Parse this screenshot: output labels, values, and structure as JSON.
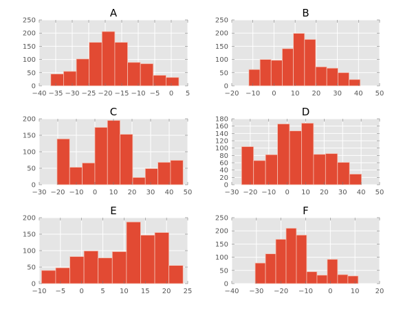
{
  "chart_data": [
    {
      "type": "bar",
      "subtype": "histogram",
      "title": "A",
      "xlim": [
        -40,
        5
      ],
      "ylim": [
        0,
        250
      ],
      "xticks": [
        -40,
        -35,
        -30,
        -25,
        -20,
        -15,
        -10,
        -5,
        0,
        5
      ],
      "yticks": [
        0,
        50,
        100,
        150,
        200,
        250
      ],
      "bin_start": -36.5,
      "bin_end": 2.3,
      "values": [
        45,
        55,
        102,
        165,
        206,
        165,
        89,
        84,
        40,
        32
      ],
      "grid": true,
      "xlabel": "",
      "ylabel": ""
    },
    {
      "type": "bar",
      "subtype": "histogram",
      "title": "B",
      "xlim": [
        -20,
        50
      ],
      "ylim": [
        0,
        250
      ],
      "xticks": [
        -20,
        -10,
        0,
        10,
        20,
        30,
        40,
        50
      ],
      "yticks": [
        0,
        50,
        100,
        150,
        200,
        250
      ],
      "bin_start": -11.9,
      "bin_end": 40.8,
      "values": [
        62,
        100,
        97,
        141,
        199,
        176,
        72,
        67,
        50,
        24
      ],
      "grid": true,
      "xlabel": "",
      "ylabel": ""
    },
    {
      "type": "bar",
      "subtype": "histogram",
      "title": "C",
      "xlim": [
        -30,
        50
      ],
      "ylim": [
        0,
        200
      ],
      "xticks": [
        -30,
        -20,
        -10,
        0,
        10,
        20,
        30,
        40,
        50
      ],
      "yticks": [
        0,
        50,
        100,
        150,
        200
      ],
      "bin_start": -20.4,
      "bin_end": 47.5,
      "values": [
        139,
        53,
        66,
        174,
        195,
        153,
        22,
        49,
        68,
        74
      ],
      "grid": true,
      "xlabel": "",
      "ylabel": ""
    },
    {
      "type": "bar",
      "subtype": "histogram",
      "title": "D",
      "xlim": [
        -30,
        50
      ],
      "ylim": [
        0,
        180
      ],
      "xticks": [
        -30,
        -20,
        -10,
        0,
        10,
        20,
        30,
        40,
        50
      ],
      "yticks": [
        0,
        20,
        40,
        60,
        80,
        100,
        120,
        140,
        160,
        180
      ],
      "bin_start": -24.7,
      "bin_end": 40.2,
      "values": [
        104,
        66,
        82,
        166,
        147,
        168,
        83,
        85,
        61,
        29
      ],
      "grid": true,
      "xlabel": "",
      "ylabel": ""
    },
    {
      "type": "bar",
      "subtype": "histogram",
      "title": "E",
      "xlim": [
        -10,
        25
      ],
      "ylim": [
        0,
        200
      ],
      "xticks": [
        -10,
        -5,
        0,
        5,
        10,
        15,
        20,
        25
      ],
      "yticks": [
        0,
        50,
        100,
        150,
        200
      ],
      "bin_start": -9.46,
      "bin_end": 23.9,
      "values": [
        40,
        48,
        82,
        99,
        78,
        97,
        187,
        147,
        155,
        55
      ],
      "grid": true,
      "xlabel": "",
      "ylabel": ""
    },
    {
      "type": "bar",
      "subtype": "histogram",
      "title": "F",
      "xlim": [
        -40,
        20
      ],
      "ylim": [
        0,
        250
      ],
      "xticks": [
        -40,
        -30,
        -20,
        -10,
        0,
        10,
        20
      ],
      "yticks": [
        0,
        50,
        100,
        150,
        200,
        250
      ],
      "bin_start": -30.5,
      "bin_end": 11.3,
      "values": [
        78,
        113,
        168,
        210,
        184,
        45,
        32,
        92,
        34,
        29
      ],
      "grid": true,
      "xlabel": "",
      "ylabel": ""
    }
  ],
  "colors": {
    "bar": "#E24A33",
    "background": "#E5E5E5",
    "grid": "#FFFFFF"
  }
}
